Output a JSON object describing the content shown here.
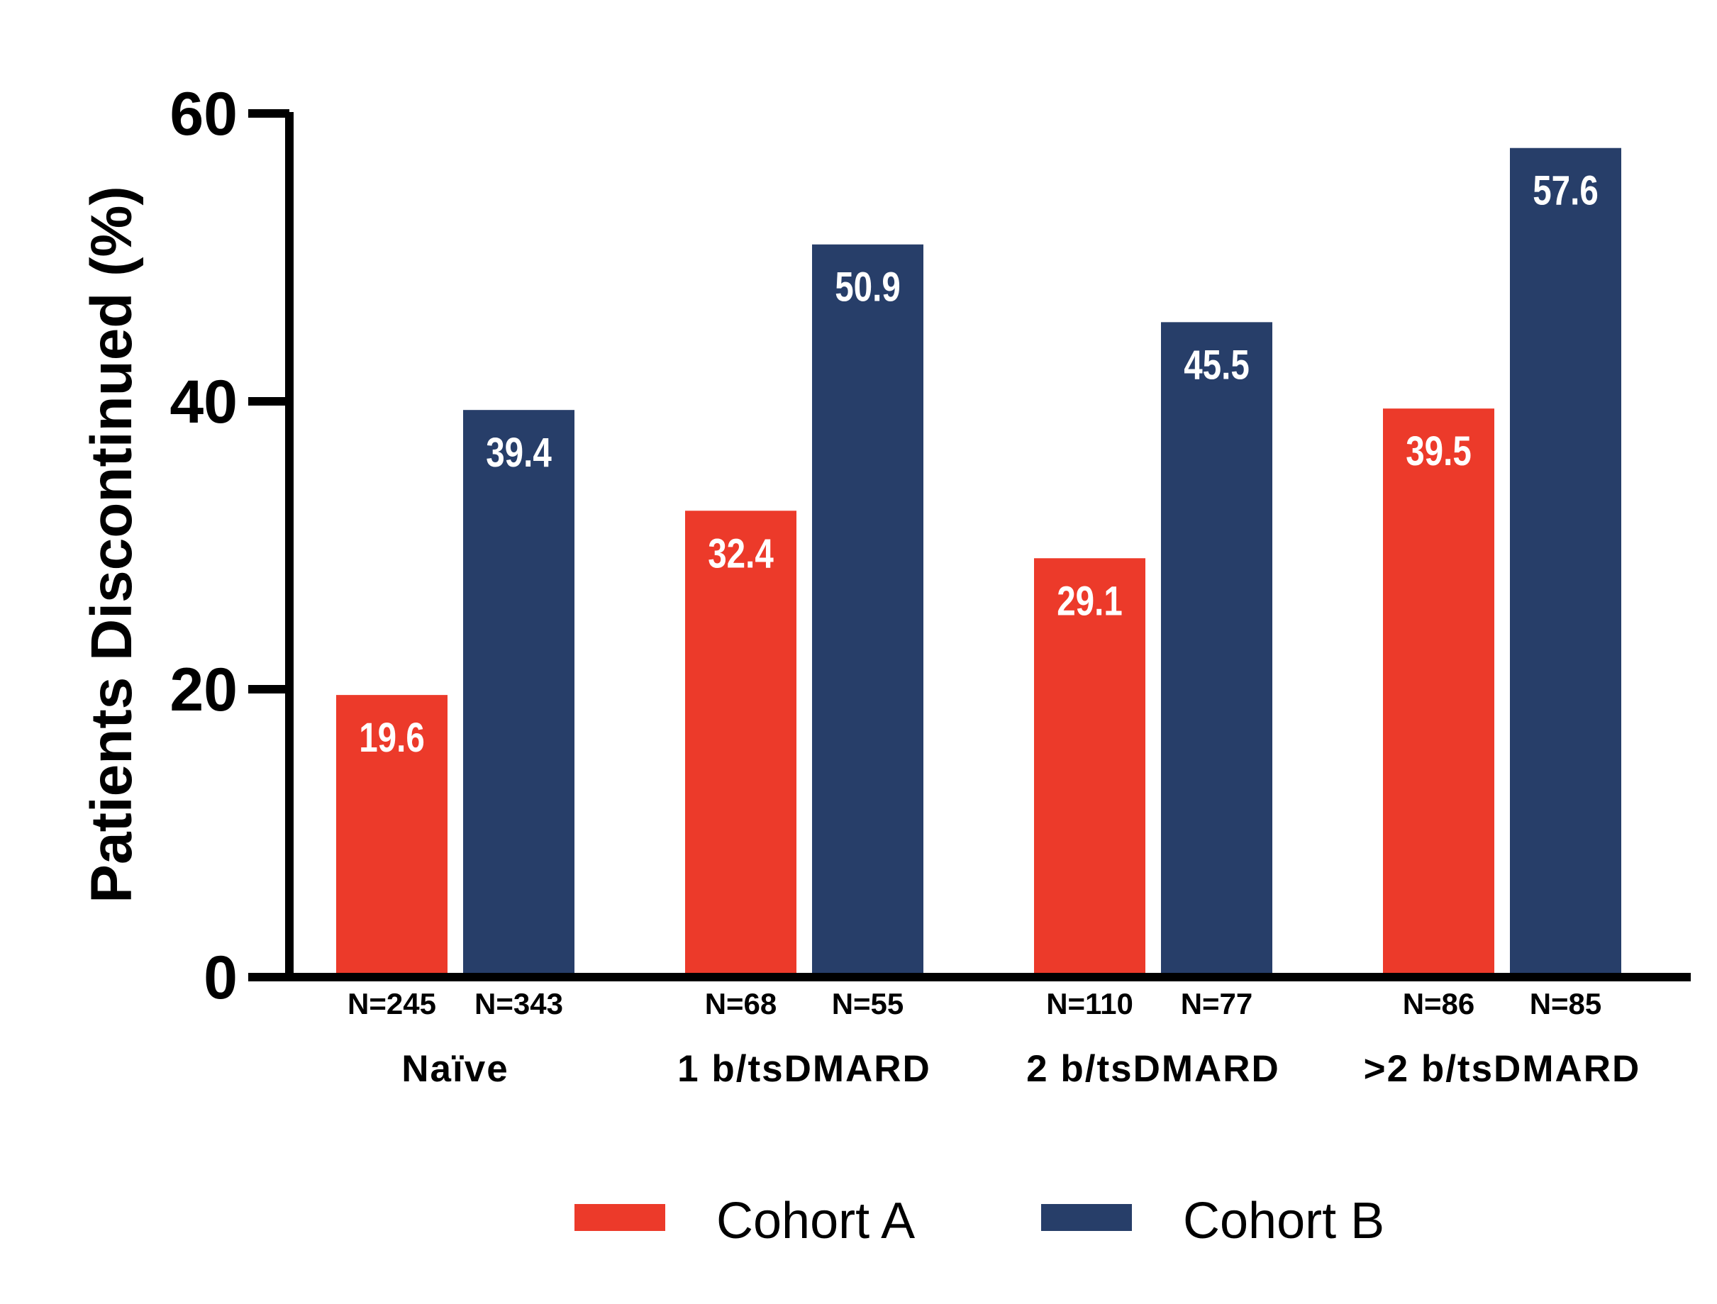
{
  "chart_data": {
    "type": "bar",
    "ylabel": "Patients Discontinued (%)",
    "xlabel": "",
    "ylim": [
      0,
      60
    ],
    "yticks": [
      0,
      20,
      40,
      60
    ],
    "grid": false,
    "legend_position": "bottom",
    "categories": [
      "Naïve",
      "1 b/tsDMARD",
      "2 b/tsDMARD",
      ">2 b/tsDMARD"
    ],
    "series": [
      {
        "name": "Cohort A",
        "color": "#ec3a2a",
        "values": [
          19.6,
          32.4,
          29.1,
          39.5
        ],
        "value_labels": [
          "19.6",
          "32.4",
          "29.1",
          "39.5"
        ],
        "n_labels": [
          "N=245",
          "N=68",
          "N=110",
          "N=86"
        ]
      },
      {
        "name": "Cohort B",
        "color": "#273e69",
        "values": [
          39.4,
          50.9,
          45.5,
          57.6
        ],
        "value_labels": [
          "39.4",
          "50.9",
          "45.5",
          "57.6"
        ],
        "n_labels": [
          "N=343",
          "N=55",
          "N=77",
          "N=85"
        ]
      }
    ]
  }
}
